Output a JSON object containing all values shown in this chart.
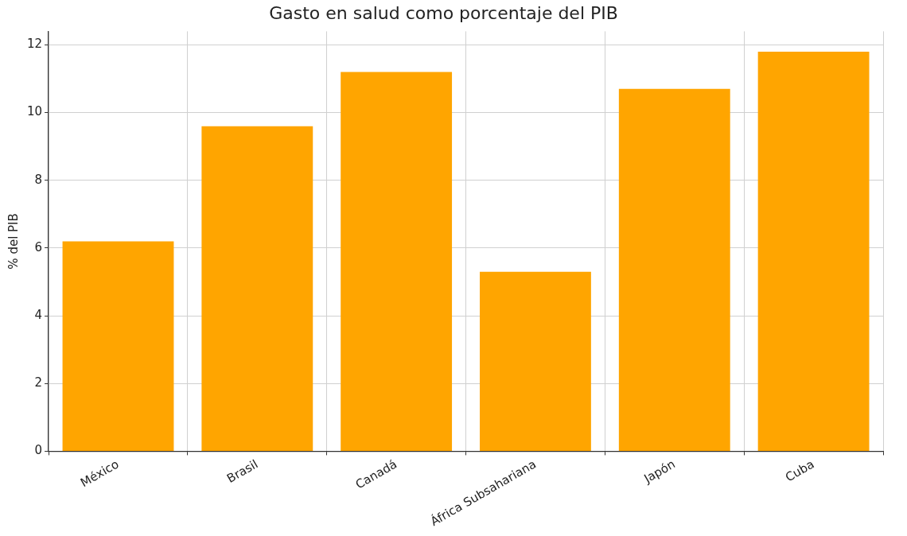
{
  "chart_data": {
    "type": "bar",
    "title": "Gasto en salud como porcentaje del PIB",
    "ylabel": "% del PIB",
    "categories": [
      "México",
      "Brasil",
      "Canadá",
      "África Subsahariana",
      "Japón",
      "Cuba"
    ],
    "values": [
      6.2,
      9.6,
      11.2,
      5.3,
      10.7,
      11.8
    ],
    "color": "#ffa500",
    "ylim": [
      0,
      12.4
    ],
    "yticks": [
      0,
      2,
      4,
      6,
      8,
      10,
      12
    ],
    "grid": true
  }
}
